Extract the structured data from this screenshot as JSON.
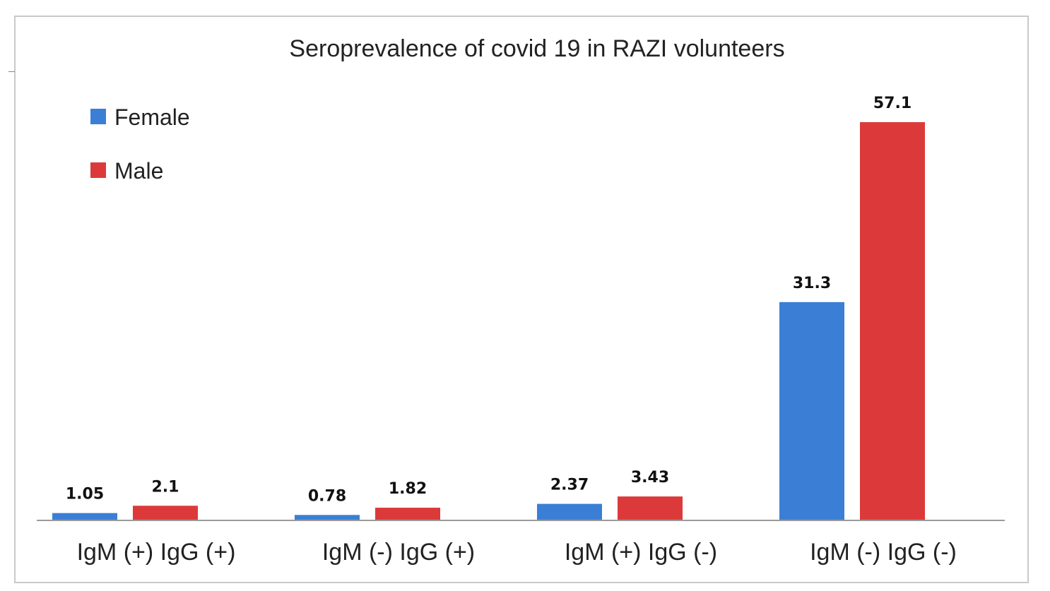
{
  "chart_data": {
    "type": "bar",
    "title": "Seroprevalence of covid 19 in RAZI  volunteers",
    "categories": [
      "IgM (+) IgG (+)",
      "IgM (-) IgG (+)",
      "IgM (+) IgG (-)",
      "IgM (-) IgG (-)"
    ],
    "series": [
      {
        "name": "Female",
        "color": "#3a7fd5",
        "values": [
          1.05,
          0.78,
          2.37,
          31.3
        ],
        "labels": [
          "1.05",
          "0.78",
          "2.37",
          "31.3"
        ]
      },
      {
        "name": "Male",
        "color": "#dc3a3a",
        "values": [
          2.1,
          1.82,
          3.43,
          57.1
        ],
        "labels": [
          "2.1",
          "1.82",
          "3.43",
          "57.1"
        ]
      }
    ],
    "xlabel": "",
    "ylabel": "",
    "ylim": [
      0,
      57.1
    ],
    "grid": false,
    "legend": "top-left",
    "value_axis_shown": false
  }
}
